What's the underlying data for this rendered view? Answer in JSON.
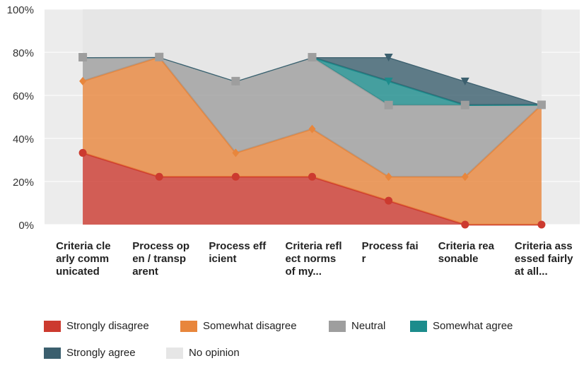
{
  "chart_data": {
    "type": "stacked_area",
    "categories": [
      "Criteria clearly communicated",
      "Process open / transparent",
      "Process efficient",
      "Criteria reflect norms of my...",
      "Process fair",
      "Criteria reasonable",
      "Criteria assessed fairly at all..."
    ],
    "series": [
      {
        "name": "Strongly disagree",
        "color": "#cc3a2f",
        "values": [
          33.3,
          22.2,
          22.2,
          22.2,
          11.1,
          0,
          0
        ]
      },
      {
        "name": "Somewhat disagree",
        "color": "#e8863c",
        "values": [
          33.3,
          55.6,
          11.1,
          22.2,
          11.1,
          22.2,
          55.6
        ]
      },
      {
        "name": "Neutral",
        "color": "#9e9e9e",
        "values": [
          11.1,
          0,
          33.3,
          33.3,
          33.3,
          33.3,
          0
        ]
      },
      {
        "name": "Somewhat agree",
        "color": "#1c8c8c",
        "values": [
          0,
          0,
          0,
          0,
          11.1,
          0,
          0
        ]
      },
      {
        "name": "Strongly agree",
        "color": "#3b5f6e",
        "values": [
          0,
          0,
          0,
          0,
          11.1,
          11.1,
          0
        ]
      },
      {
        "name": "No opinion",
        "color": "#e6e6e6",
        "values": [
          22.2,
          22.2,
          33.3,
          22.2,
          22.2,
          33.3,
          44.4
        ]
      }
    ],
    "ylim": [
      0,
      100
    ],
    "yticks": [
      {
        "value": 0,
        "label": "0%"
      },
      {
        "value": 20,
        "label": "20%"
      },
      {
        "value": 40,
        "label": "40%"
      },
      {
        "value": 60,
        "label": "60%"
      },
      {
        "value": 80,
        "label": "80%"
      },
      {
        "value": 100,
        "label": "100%"
      }
    ],
    "grid": true
  }
}
